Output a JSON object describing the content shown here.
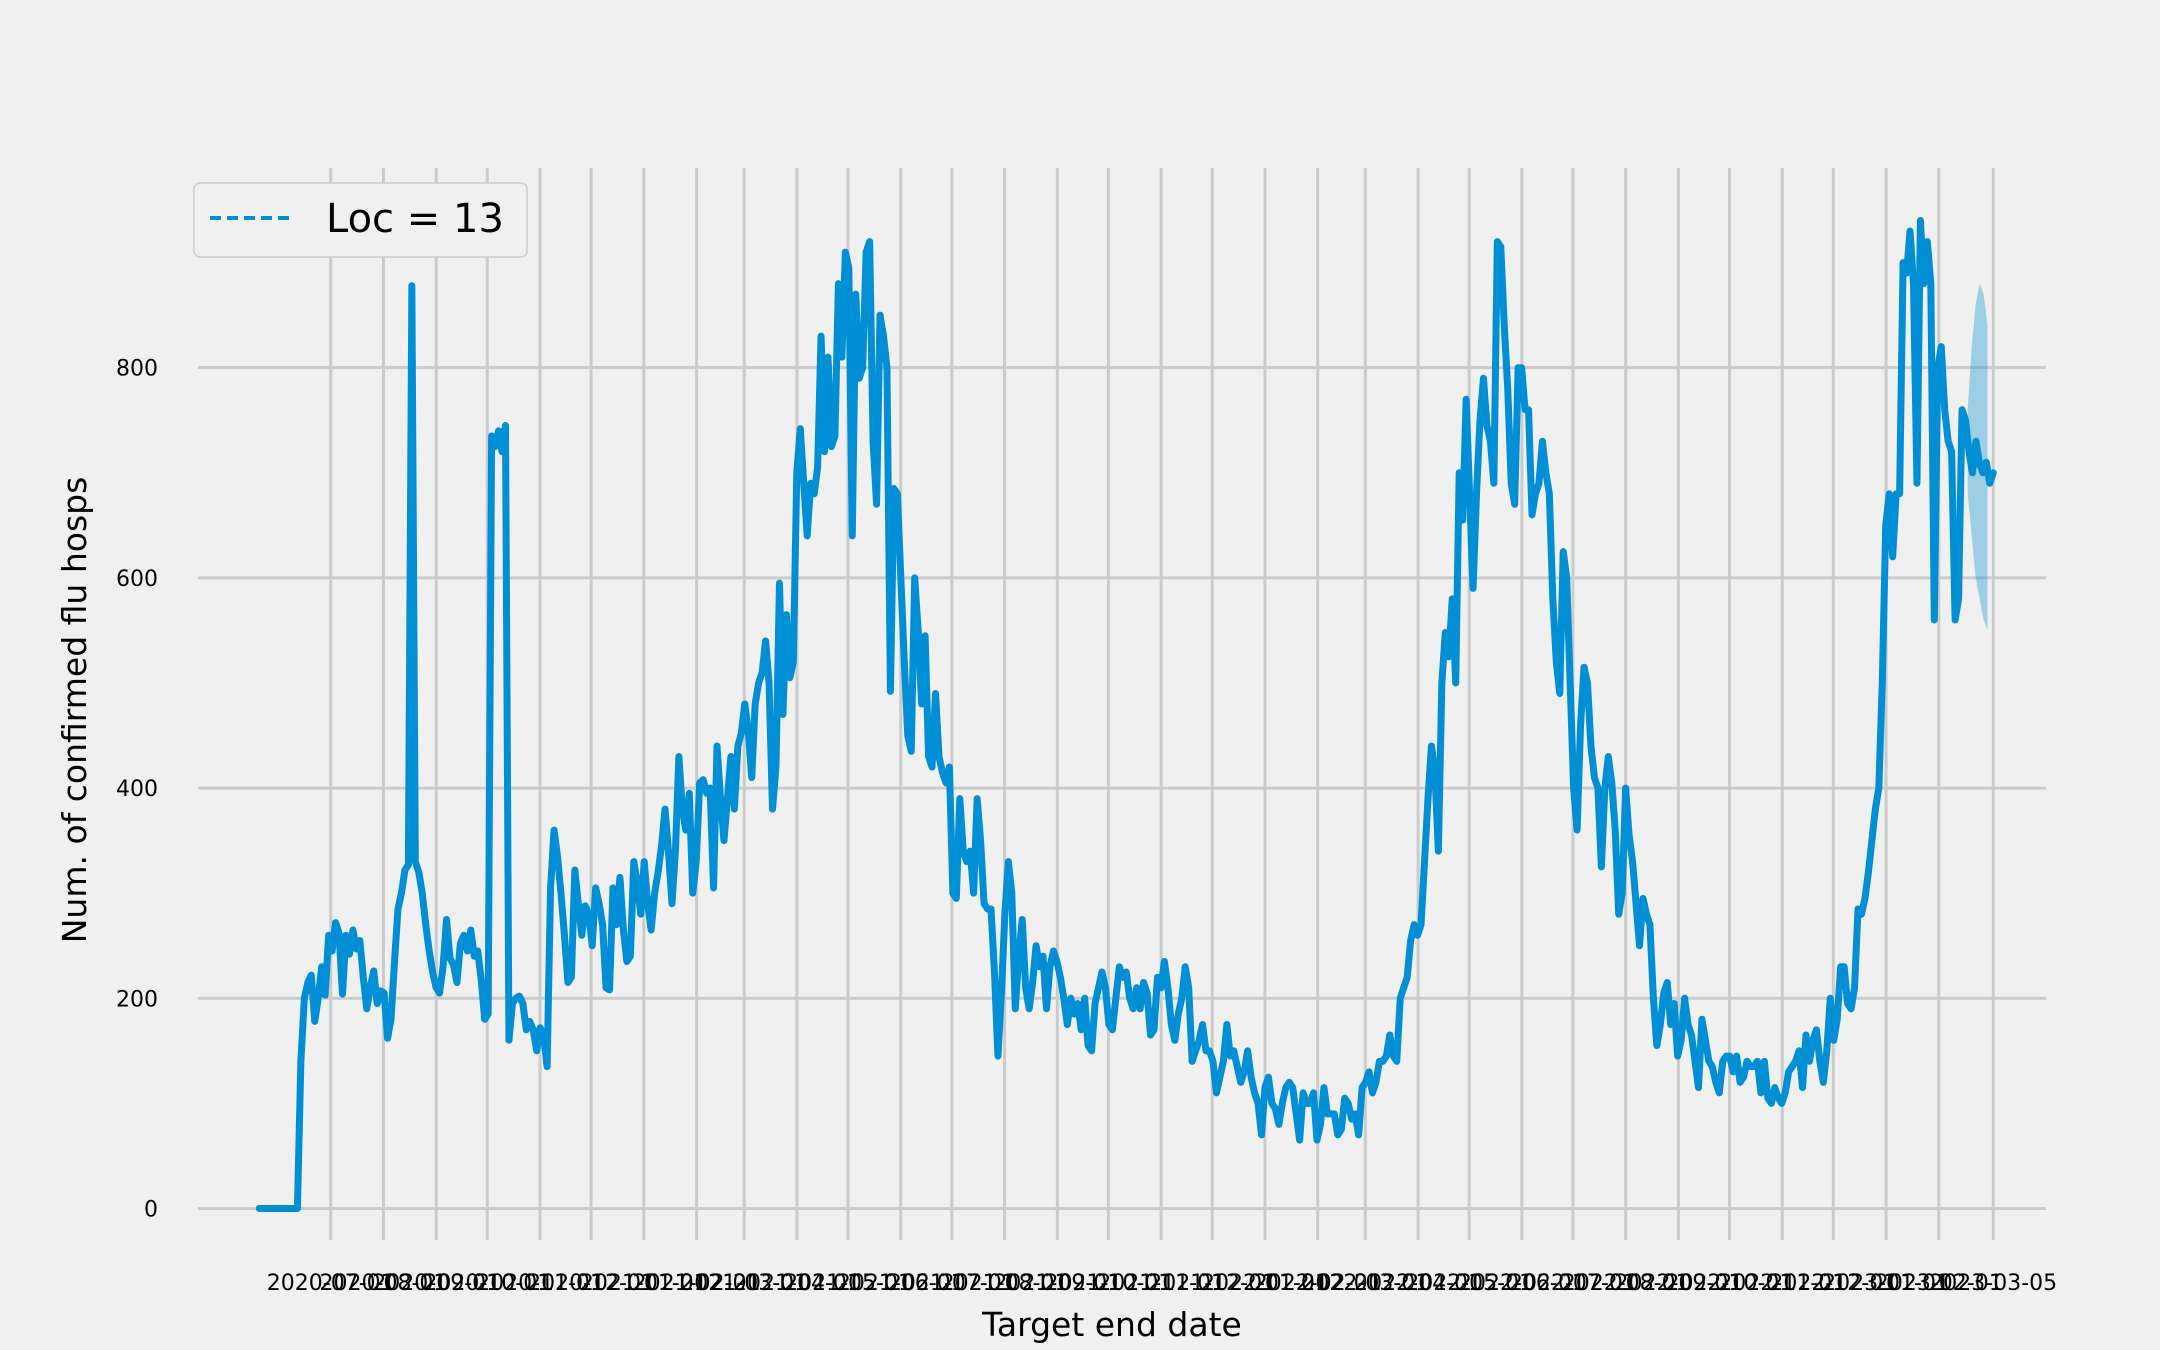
{
  "chart_data": {
    "type": "line",
    "title": "",
    "xlabel": "Target end date",
    "ylabel": "Num. of confirmed flu hosps",
    "ylim": [
      -30,
      990
    ],
    "yticks": [
      0,
      200,
      400,
      600,
      800
    ],
    "grid": true,
    "legend": {
      "position": "top-left",
      "label": "Loc = 13"
    },
    "colors": {
      "series": "#008fd5",
      "grid": "#cbcbcb",
      "background": "#f0f0f0"
    },
    "x_start": "2020-05-20",
    "x_end": "2023-03-05",
    "xlim": [
      "2020-04-14",
      "2023-04-05"
    ],
    "xticks": [
      "2020-07-01",
      "2020-08-01",
      "2020-09-01",
      "2020-10-01",
      "2020-11-01",
      "2020-12-01",
      "2021-01-01",
      "2021-02-01",
      "2021-03-01",
      "2021-04-01",
      "2021-05-01",
      "2021-06-01",
      "2021-07-01",
      "2021-08-01",
      "2021-09-01",
      "2021-10-01",
      "2021-11-01",
      "2021-12-01",
      "2022-01-01",
      "2022-02-01",
      "2022-03-01",
      "2022-04-01",
      "2022-05-01",
      "2022-06-01",
      "2022-07-01",
      "2022-08-01",
      "2022-09-01",
      "2022-10-01",
      "2022-11-01",
      "2022-12-01",
      "2023-01-01",
      "2023-02-01",
      "2023-03-05"
    ],
    "series": [
      {
        "name": "",
        "values": [
          0,
          0,
          0,
          0,
          0,
          0,
          0,
          0,
          0,
          0,
          0,
          0,
          140,
          200,
          215,
          222,
          178,
          200,
          230,
          203,
          260,
          245,
          272,
          262,
          204,
          260,
          242,
          265,
          247,
          255,
          220,
          190,
          210,
          226,
          195,
          207,
          205,
          162,
          180,
          235,
          285,
          300,
          322,
          327,
          878,
          330,
          320,
          300,
          270,
          245,
          225,
          210,
          205,
          230,
          275,
          238,
          232,
          215,
          252,
          260,
          245,
          265,
          240,
          245,
          218,
          180,
          185,
          735,
          725,
          740,
          720,
          745,
          160,
          195,
          200,
          202,
          195,
          170,
          178,
          170,
          150,
          172,
          165,
          135,
          305,
          360,
          335,
          300,
          260,
          215,
          220,
          322,
          290,
          260,
          288,
          280,
          250,
          305,
          290,
          270,
          210,
          208,
          305,
          270,
          315,
          265,
          235,
          240,
          330,
          310,
          280,
          330,
          290,
          265,
          300,
          320,
          345,
          380,
          340,
          290,
          340,
          430,
          380,
          360,
          395,
          300,
          330,
          405,
          408,
          395,
          400,
          305,
          440,
          390,
          350,
          390,
          430,
          380,
          440,
          452,
          480,
          455,
          410,
          480,
          500,
          510,
          540,
          500,
          380,
          420,
          595,
          470,
          565,
          505,
          520,
          700,
          742,
          690,
          640,
          690,
          680,
          705,
          830,
          720,
          810,
          725,
          735,
          880,
          810,
          910,
          895,
          640,
          870,
          790,
          800,
          910,
          920,
          730,
          670,
          850,
          830,
          800,
          492,
          685,
          680,
          600,
          520,
          450,
          435,
          600,
          550,
          480,
          545,
          430,
          420,
          490,
          430,
          415,
          405,
          420,
          300,
          295,
          390,
          340,
          330,
          340,
          300,
          390,
          350,
          290,
          285,
          285,
          225,
          145,
          205,
          280,
          330,
          300,
          190,
          240,
          275,
          210,
          190,
          215,
          250,
          230,
          240,
          190,
          230,
          245,
          235,
          220,
          200,
          175,
          200,
          185,
          195,
          170,
          200,
          155,
          150,
          195,
          210,
          225,
          210,
          175,
          170,
          200,
          230,
          220,
          225,
          200,
          190,
          210,
          190,
          215,
          205,
          165,
          170,
          220,
          210,
          235,
          210,
          175,
          160,
          185,
          200,
          230,
          210,
          140,
          150,
          160,
          175,
          150,
          150,
          140,
          110,
          125,
          140,
          175,
          145,
          150,
          135,
          120,
          130,
          150,
          125,
          110,
          100,
          70,
          115,
          125,
          100,
          95,
          80,
          100,
          115,
          120,
          115,
          90,
          65,
          110,
          100,
          100,
          110,
          65,
          80,
          115,
          90,
          90,
          90,
          70,
          75,
          105,
          100,
          85,
          90,
          70,
          115,
          120,
          130,
          110,
          120,
          140,
          140,
          145,
          165,
          145,
          140,
          200,
          210,
          220,
          255,
          270,
          260,
          270,
          330,
          390,
          440,
          415,
          340,
          500,
          548,
          525,
          580,
          500,
          700,
          655,
          770,
          680,
          590,
          680,
          750,
          790,
          745,
          730,
          690,
          920,
          915,
          840,
          780,
          690,
          670,
          800,
          800,
          760,
          760,
          660,
          680,
          690,
          730,
          700,
          680,
          580,
          520,
          490,
          625,
          600,
          500,
          400,
          360,
          460,
          515,
          500,
          440,
          410,
          400,
          325,
          400,
          430,
          405,
          360,
          280,
          300,
          400,
          355,
          330,
          290,
          250,
          295,
          280,
          270,
          200,
          155,
          175,
          205,
          215,
          175,
          195,
          145,
          160,
          200,
          175,
          165,
          140,
          115,
          180,
          160,
          140,
          135,
          120,
          110,
          140,
          145,
          145,
          130,
          145,
          120,
          125,
          140,
          135,
          135,
          140,
          110,
          140,
          105,
          100,
          115,
          105,
          100,
          110,
          130,
          135,
          140,
          150,
          115,
          165,
          140,
          160,
          170,
          140,
          120,
          150,
          200,
          160,
          180,
          230,
          230,
          195,
          190,
          210,
          285,
          280,
          295,
          320,
          350,
          380,
          400,
          500,
          650,
          680,
          620,
          680,
          680,
          900,
          890,
          930,
          880,
          690,
          940,
          880,
          920,
          880,
          560,
          800,
          820,
          760,
          730,
          720,
          560,
          580,
          760,
          750,
          720,
          700,
          730,
          710,
          700,
          710,
          690,
          700
        ]
      }
    ],
    "forecast": {
      "x_start": "2023-02-18",
      "median": [
        720,
        715,
        710,
        705,
        700,
        695
      ],
      "upper": [
        760,
        820,
        860,
        880,
        870,
        840
      ],
      "lower": [
        680,
        640,
        600,
        580,
        560,
        550
      ]
    }
  }
}
